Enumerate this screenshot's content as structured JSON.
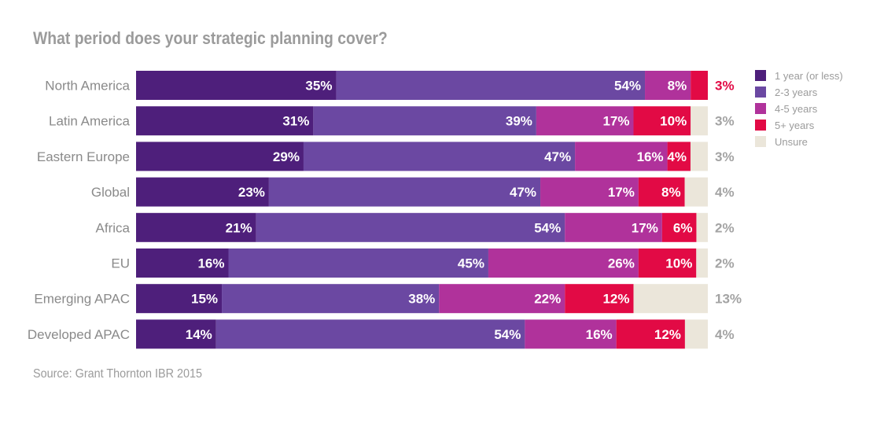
{
  "chart_data": {
    "type": "bar",
    "orientation": "horizontal",
    "stacked": true,
    "title": "What period does your strategic planning cover?",
    "source": "Source: Grant Thornton IBR 2015",
    "categories": [
      "North America",
      "Latin America",
      "Eastern Europe",
      "Global",
      "Africa",
      "EU",
      "Emerging APAC",
      "Developed APAC"
    ],
    "series": [
      {
        "name": "1 year (or less)",
        "color": "#4e1f7b",
        "values": [
          35,
          31,
          29,
          23,
          21,
          16,
          15,
          14
        ]
      },
      {
        "name": "2-3 years",
        "color": "#6b48a2",
        "values": [
          54,
          39,
          47,
          47,
          54,
          45,
          38,
          54
        ]
      },
      {
        "name": "4-5 years",
        "color": "#b0329b",
        "values": [
          8,
          17,
          16,
          17,
          17,
          26,
          22,
          16
        ]
      },
      {
        "name": "5+ years",
        "color": "#e20a45",
        "values": [
          3,
          10,
          4,
          8,
          6,
          10,
          12,
          12
        ]
      },
      {
        "name": "Unsure",
        "color": "#ebe6da",
        "values": [
          0,
          3,
          3,
          4,
          2,
          2,
          13,
          4
        ]
      }
    ],
    "legend_position": "right",
    "grid": false
  }
}
